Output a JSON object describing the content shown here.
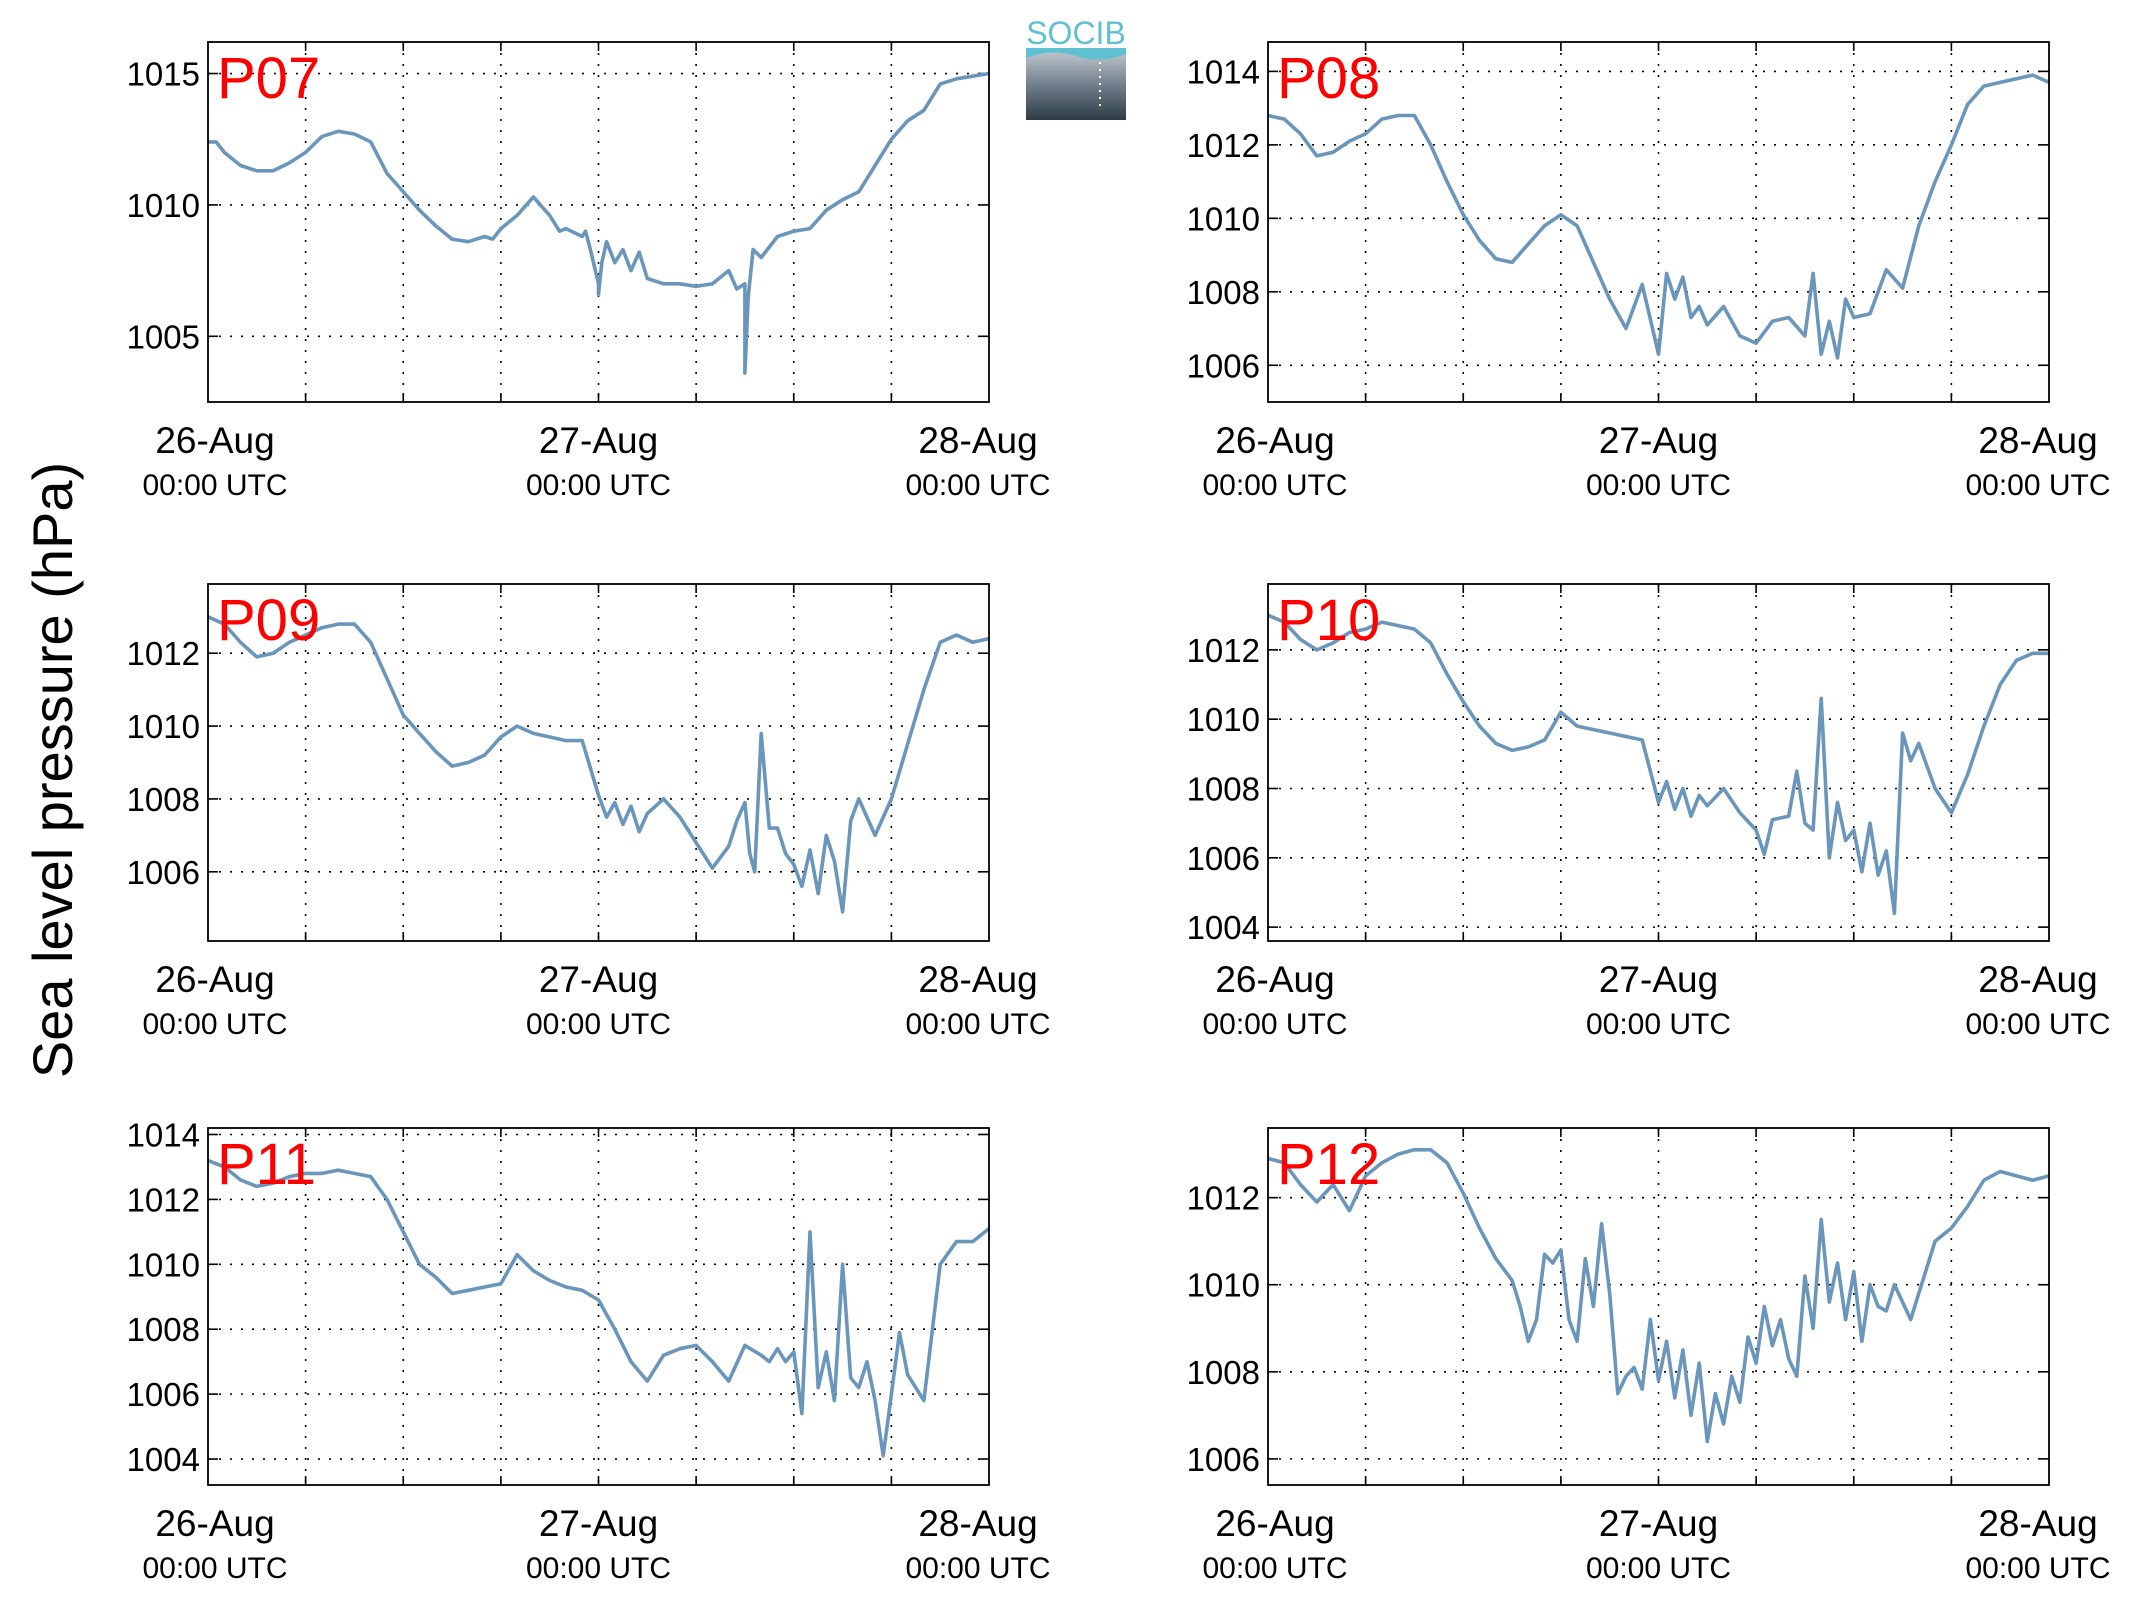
{
  "figure": {
    "ylabel": "Sea level pressure (hPa)",
    "logo_text": "SOCIB",
    "line_color": "#6b96bb",
    "label_color": "#ff0000"
  },
  "chart_data": [
    {
      "type": "line",
      "title": "P07",
      "x_tick_labels": [
        {
          "date": "26-Aug",
          "time": "00:00 UTC"
        },
        {
          "date": "27-Aug",
          "time": "00:00 UTC"
        },
        {
          "date": "28-Aug",
          "time": "00:00 UTC"
        }
      ],
      "xlim": [
        0,
        48
      ],
      "ylim": [
        1002.5,
        1016.2
      ],
      "yticks": [
        1005,
        1010,
        1015
      ],
      "grid": true,
      "series": [
        {
          "x": [
            0,
            0.5,
            1,
            2,
            3,
            4,
            5,
            6,
            7,
            8,
            9,
            10,
            11,
            12,
            13,
            14,
            15,
            16,
            17,
            17.5,
            18,
            19,
            20,
            21,
            21.3,
            21.6,
            22,
            23,
            23.2,
            23.5,
            24,
            24,
            24.2,
            24.5,
            25,
            25.5,
            26,
            26.5,
            27,
            28,
            29,
            30,
            31,
            32,
            32.5,
            33,
            33,
            33.2,
            33.5,
            34,
            35,
            36,
            37,
            38,
            39,
            40,
            41,
            42,
            43,
            44,
            45,
            46,
            47,
            48
          ],
          "y": [
            1012.4,
            1012.4,
            1012,
            1011.5,
            1011.3,
            1011.3,
            1011.6,
            1012,
            1012.6,
            1012.8,
            1012.7,
            1012.4,
            1011.2,
            1010.5,
            1009.8,
            1009.2,
            1008.7,
            1008.6,
            1008.8,
            1008.7,
            1009.1,
            1009.6,
            1010.3,
            1009.6,
            1009.3,
            1009.0,
            1009.1,
            1008.8,
            1009.0,
            1008.3,
            1007.0,
            1006.6,
            1007.8,
            1008.6,
            1007.8,
            1008.3,
            1007.5,
            1008.2,
            1007.2,
            1007.0,
            1007.0,
            1006.9,
            1007.0,
            1007.5,
            1006.8,
            1007.0,
            1003.6,
            1006.5,
            1008.3,
            1008.0,
            1008.8,
            1009.0,
            1009.1,
            1009.8,
            1010.2,
            1010.5,
            1011.5,
            1012.5,
            1013.2,
            1013.6,
            1014.6,
            1014.8,
            1014.9,
            1015.0
          ]
        }
      ]
    },
    {
      "type": "line",
      "title": "P08",
      "x_tick_labels": [
        {
          "date": "26-Aug",
          "time": "00:00 UTC"
        },
        {
          "date": "27-Aug",
          "time": "00:00 UTC"
        },
        {
          "date": "28-Aug",
          "time": "00:00 UTC"
        }
      ],
      "xlim": [
        0,
        48
      ],
      "ylim": [
        1005,
        1014.8
      ],
      "yticks": [
        1006,
        1008,
        1010,
        1012,
        1014
      ],
      "grid": true,
      "series": [
        {
          "x": [
            0,
            1,
            2,
            3,
            4,
            5,
            6,
            7,
            8,
            9,
            10,
            11,
            12,
            13,
            14,
            15,
            16,
            17,
            18,
            19,
            20,
            21,
            22,
            23,
            24,
            24.5,
            25,
            25.5,
            26,
            26.5,
            27,
            28,
            29,
            30,
            31,
            32,
            33,
            33.5,
            34,
            34.5,
            35,
            35.5,
            36,
            37,
            38,
            39,
            40,
            41,
            42,
            43,
            44,
            45,
            46,
            47,
            48
          ],
          "y": [
            1012.8,
            1012.7,
            1012.3,
            1011.7,
            1011.8,
            1012.1,
            1012.3,
            1012.7,
            1012.8,
            1012.8,
            1012.0,
            1011.0,
            1010.1,
            1009.4,
            1008.9,
            1008.8,
            1009.3,
            1009.8,
            1010.1,
            1009.8,
            1008.8,
            1007.8,
            1007.0,
            1008.2,
            1006.3,
            1008.5,
            1007.8,
            1008.4,
            1007.3,
            1007.6,
            1007.1,
            1007.6,
            1006.8,
            1006.6,
            1007.2,
            1007.3,
            1006.8,
            1008.5,
            1006.3,
            1007.2,
            1006.2,
            1007.8,
            1007.3,
            1007.4,
            1008.6,
            1008.1,
            1009.8,
            1011.0,
            1012.0,
            1013.1,
            1013.6,
            1013.7,
            1013.8,
            1013.9,
            1013.7
          ]
        }
      ]
    },
    {
      "type": "line",
      "title": "P09",
      "x_tick_labels": [
        {
          "date": "26-Aug",
          "time": "00:00 UTC"
        },
        {
          "date": "27-Aug",
          "time": "00:00 UTC"
        },
        {
          "date": "28-Aug",
          "time": "00:00 UTC"
        }
      ],
      "xlim": [
        0,
        48
      ],
      "ylim": [
        1004.1,
        1013.9
      ],
      "yticks": [
        1006,
        1008,
        1010,
        1012
      ],
      "grid": true,
      "series": [
        {
          "x": [
            0,
            1,
            2,
            3,
            4,
            5,
            6,
            7,
            8,
            9,
            10,
            11,
            12,
            13,
            14,
            15,
            16,
            17,
            18,
            19,
            20,
            21,
            22,
            23,
            24,
            24.5,
            25,
            25.5,
            26,
            26.5,
            27,
            28,
            29,
            30,
            31,
            32,
            32.5,
            33,
            33.3,
            33.6,
            34,
            34.5,
            35,
            35.5,
            36,
            36.5,
            37,
            37.5,
            38,
            38.5,
            39,
            39.5,
            40,
            41,
            42,
            43,
            44,
            45,
            46,
            47,
            48
          ],
          "y": [
            1013.0,
            1012.8,
            1012.3,
            1011.9,
            1012.0,
            1012.3,
            1012.5,
            1012.7,
            1012.8,
            1012.8,
            1012.3,
            1011.3,
            1010.3,
            1009.8,
            1009.3,
            1008.9,
            1009.0,
            1009.2,
            1009.7,
            1010.0,
            1009.8,
            1009.7,
            1009.6,
            1009.6,
            1008.1,
            1007.5,
            1007.9,
            1007.3,
            1007.8,
            1007.1,
            1007.6,
            1008.0,
            1007.5,
            1006.8,
            1006.1,
            1006.7,
            1007.4,
            1007.9,
            1006.5,
            1006.0,
            1009.8,
            1007.2,
            1007.2,
            1006.5,
            1006.2,
            1005.6,
            1006.6,
            1005.4,
            1007.0,
            1006.3,
            1004.9,
            1007.4,
            1008.0,
            1007.0,
            1008.0,
            1009.5,
            1011.0,
            1012.3,
            1012.5,
            1012.3,
            1012.4
          ]
        }
      ]
    },
    {
      "type": "line",
      "title": "P10",
      "x_tick_labels": [
        {
          "date": "26-Aug",
          "time": "00:00 UTC"
        },
        {
          "date": "27-Aug",
          "time": "00:00 UTC"
        },
        {
          "date": "28-Aug",
          "time": "00:00 UTC"
        }
      ],
      "xlim": [
        0,
        48
      ],
      "ylim": [
        1003.6,
        1013.9
      ],
      "yticks": [
        1004,
        1006,
        1008,
        1010,
        1012
      ],
      "grid": true,
      "series": [
        {
          "x": [
            0,
            1,
            2,
            3,
            4,
            5,
            6,
            7,
            8,
            9,
            10,
            11,
            12,
            13,
            14,
            15,
            16,
            17,
            18,
            19,
            20,
            21,
            22,
            23,
            24,
            24.5,
            25,
            25.5,
            26,
            26.5,
            27,
            28,
            29,
            30,
            30.5,
            31,
            32,
            32.5,
            33,
            33.5,
            34,
            34.5,
            35,
            35.5,
            36,
            36.5,
            37,
            37.5,
            38,
            38.5,
            39,
            39.5,
            40,
            41,
            42,
            43,
            44,
            45,
            46,
            47,
            48
          ],
          "y": [
            1013.0,
            1012.8,
            1012.3,
            1012.0,
            1012.2,
            1012.5,
            1012.6,
            1012.8,
            1012.7,
            1012.6,
            1012.2,
            1011.3,
            1010.5,
            1009.8,
            1009.3,
            1009.1,
            1009.2,
            1009.4,
            1010.2,
            1009.8,
            1009.7,
            1009.6,
            1009.5,
            1009.4,
            1007.6,
            1008.2,
            1007.4,
            1008.0,
            1007.2,
            1007.8,
            1007.5,
            1008.0,
            1007.3,
            1006.8,
            1006.1,
            1007.1,
            1007.2,
            1008.5,
            1007.0,
            1006.8,
            1010.6,
            1006.0,
            1007.6,
            1006.5,
            1006.8,
            1005.6,
            1007.0,
            1005.5,
            1006.2,
            1004.4,
            1009.6,
            1008.8,
            1009.3,
            1008.0,
            1007.3,
            1008.4,
            1009.8,
            1011.0,
            1011.7,
            1011.9,
            1011.9
          ]
        }
      ]
    },
    {
      "type": "line",
      "title": "P11",
      "x_tick_labels": [
        {
          "date": "26-Aug",
          "time": "00:00 UTC"
        },
        {
          "date": "27-Aug",
          "time": "00:00 UTC"
        },
        {
          "date": "28-Aug",
          "time": "00:00 UTC"
        }
      ],
      "xlim": [
        0,
        48
      ],
      "ylim": [
        1003.2,
        1014.2
      ],
      "yticks": [
        1004,
        1006,
        1008,
        1010,
        1012,
        1014
      ],
      "grid": true,
      "series": [
        {
          "x": [
            0,
            1,
            2,
            3,
            4,
            5,
            6,
            7,
            8,
            9,
            10,
            11,
            12,
            13,
            14,
            15,
            16,
            17,
            18,
            19,
            20,
            21,
            22,
            23,
            24,
            25,
            26,
            27,
            28,
            29,
            30,
            31,
            32,
            33,
            34,
            34.5,
            35,
            35.5,
            36,
            36.5,
            37,
            37.5,
            38,
            38.5,
            39,
            39.5,
            40,
            40.5,
            41,
            41.5,
            42,
            42.5,
            43,
            44,
            45,
            46,
            47,
            48
          ],
          "y": [
            1013.2,
            1013.0,
            1012.6,
            1012.4,
            1012.5,
            1012.7,
            1012.8,
            1012.8,
            1012.9,
            1012.8,
            1012.7,
            1012.0,
            1011.0,
            1010.0,
            1009.6,
            1009.1,
            1009.2,
            1009.3,
            1009.4,
            1010.3,
            1009.8,
            1009.5,
            1009.3,
            1009.2,
            1008.9,
            1008.0,
            1007.0,
            1006.4,
            1007.2,
            1007.4,
            1007.5,
            1007.0,
            1006.4,
            1007.5,
            1007.2,
            1007.0,
            1007.4,
            1007.0,
            1007.3,
            1005.4,
            1011.0,
            1006.2,
            1007.3,
            1005.8,
            1010.0,
            1006.5,
            1006.2,
            1007.0,
            1005.8,
            1004.1,
            1006.0,
            1007.9,
            1006.6,
            1005.8,
            1010.0,
            1010.7,
            1010.7,
            1011.1
          ]
        }
      ]
    },
    {
      "type": "line",
      "title": "P12",
      "x_tick_labels": [
        {
          "date": "26-Aug",
          "time": "00:00 UTC"
        },
        {
          "date": "27-Aug",
          "time": "00:00 UTC"
        },
        {
          "date": "28-Aug",
          "time": "00:00 UTC"
        }
      ],
      "xlim": [
        0,
        48
      ],
      "ylim": [
        1005.4,
        1013.6
      ],
      "yticks": [
        1006,
        1008,
        1010,
        1012
      ],
      "grid": true,
      "series": [
        {
          "x": [
            0,
            1,
            2,
            3,
            4,
            5,
            6,
            7,
            8,
            9,
            10,
            11,
            12,
            13,
            14,
            15,
            15.5,
            16,
            16.5,
            17,
            17.5,
            18,
            18.5,
            19,
            19.5,
            20,
            20.5,
            21,
            21.5,
            22,
            22.5,
            23,
            23.5,
            24,
            24.5,
            25,
            25.5,
            26,
            26.5,
            27,
            27.5,
            28,
            28.5,
            29,
            29.5,
            30,
            30.5,
            31,
            31.5,
            32,
            32.5,
            33,
            33.5,
            34,
            34.5,
            35,
            35.5,
            36,
            36.5,
            37,
            37.5,
            38,
            38.5,
            39,
            39.5,
            40,
            41,
            42,
            43,
            44,
            45,
            46,
            47,
            48
          ],
          "y": [
            1012.9,
            1012.8,
            1012.3,
            1011.9,
            1012.3,
            1011.7,
            1012.5,
            1012.8,
            1013.0,
            1013.1,
            1013.1,
            1012.8,
            1012.1,
            1011.3,
            1010.6,
            1010.1,
            1009.5,
            1008.7,
            1009.2,
            1010.7,
            1010.5,
            1010.8,
            1009.2,
            1008.7,
            1010.6,
            1009.5,
            1011.4,
            1009.8,
            1007.5,
            1007.9,
            1008.1,
            1007.6,
            1009.2,
            1007.8,
            1008.7,
            1007.4,
            1008.5,
            1007.0,
            1008.2,
            1006.4,
            1007.5,
            1006.8,
            1007.9,
            1007.3,
            1008.8,
            1008.2,
            1009.5,
            1008.6,
            1009.2,
            1008.3,
            1007.9,
            1010.2,
            1009.0,
            1011.5,
            1009.6,
            1010.5,
            1009.2,
            1010.3,
            1008.7,
            1010.0,
            1009.5,
            1009.4,
            1010.0,
            1009.6,
            1009.2,
            1009.8,
            1011.0,
            1011.3,
            1011.8,
            1012.4,
            1012.6,
            1012.5,
            1012.4,
            1012.5
          ]
        }
      ]
    }
  ]
}
